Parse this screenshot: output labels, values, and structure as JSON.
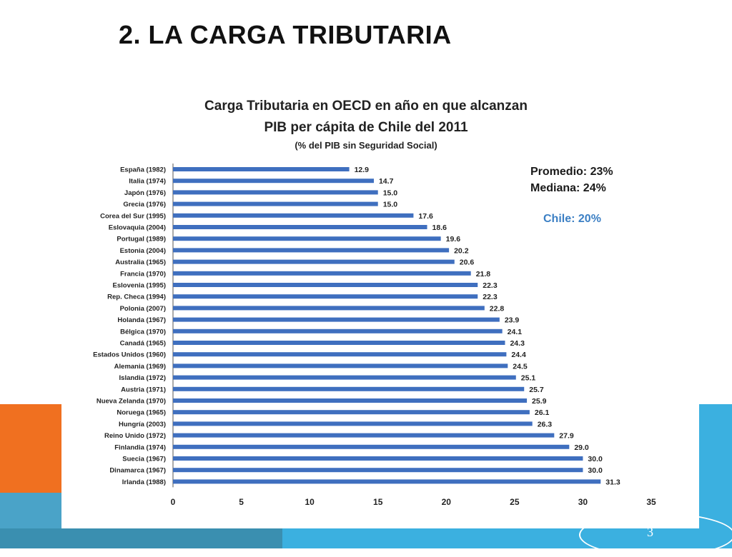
{
  "slide": {
    "title": "2. LA CARGA TRIBUTARIA",
    "page_number": "3"
  },
  "colors": {
    "bar": "#3f6fbf",
    "accent_orange": "#f07020",
    "accent_blue": "#3bb0e0",
    "chile_text": "#3b7fc4"
  },
  "chart_data": {
    "type": "bar",
    "orientation": "horizontal",
    "title": "Carga Tributaria en OECD en año en que alcanzan",
    "title_line2": "PIB per cápita de Chile del 2011",
    "subtitle": "(% del PIB sin Seguridad Social)",
    "categories": [
      "España (1982)",
      "Italia (1974)",
      "Japón (1976)",
      "Grecia (1976)",
      "Corea del Sur (1995)",
      "Eslovaquia (2004)",
      "Portugal (1989)",
      "Estonia (2004)",
      "Australia (1965)",
      "Francia (1970)",
      "Eslovenia (1995)",
      "Rep. Checa (1994)",
      "Polonia (2007)",
      "Holanda (1967)",
      "Bélgica (1970)",
      "Canadá (1965)",
      "Estados Unidos (1960)",
      "Alemania (1969)",
      "Islandia (1972)",
      "Austria (1971)",
      "Nueva Zelanda (1970)",
      "Noruega (1965)",
      "Hungría (2003)",
      "Reino Unido (1972)",
      "Finlandia (1974)",
      "Suecia (1967)",
      "Dinamarca (1967)",
      "Irlanda (1988)"
    ],
    "values": [
      12.9,
      14.7,
      15.0,
      15.0,
      17.6,
      18.6,
      19.6,
      20.2,
      20.6,
      21.8,
      22.3,
      22.3,
      22.8,
      23.9,
      24.1,
      24.3,
      24.4,
      24.5,
      25.1,
      25.7,
      25.9,
      26.1,
      26.3,
      27.9,
      29.0,
      30.0,
      30.0,
      31.3
    ],
    "value_labels": [
      "12.9",
      "14.7",
      "15.0",
      "15.0",
      "17.6",
      "18.6",
      "19.6",
      "20.2",
      "20.6",
      "21.8",
      "22.3",
      "22.3",
      "22.8",
      "23.9",
      "24.1",
      "24.3",
      "24.4",
      "24.5",
      "25.1",
      "25.7",
      "25.9",
      "26.1",
      "26.3",
      "27.9",
      "29.0",
      "30.0",
      "30.0",
      "31.3"
    ],
    "xlim": [
      0,
      35
    ],
    "xticks": [
      0,
      5,
      10,
      15,
      20,
      25,
      30,
      35
    ],
    "grid": false,
    "annotations": {
      "promedio": "Promedio: 23%",
      "mediana": "Mediana: 24%",
      "chile": "Chile: 20%"
    }
  }
}
